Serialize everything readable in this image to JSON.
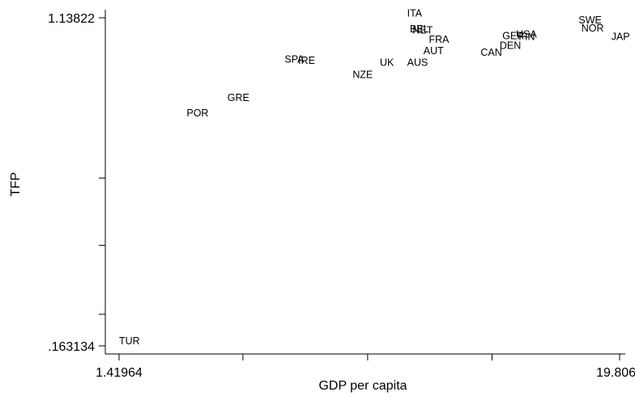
{
  "chart_data": {
    "type": "scatter",
    "title": "",
    "xlabel": "GDP per capita",
    "ylabel": "TFP",
    "xlim": [
      1.41964,
      19.8063
    ],
    "ylim": [
      0.163134,
      1.13822
    ],
    "grid": false,
    "legend": "none",
    "x_ticks": {
      "labels": [
        "1.41964",
        "19.8063"
      ],
      "unlabeled_positions": [
        5.97,
        10.55,
        15.12
      ]
    },
    "y_ticks": {
      "labels": [
        ".163134",
        "1.13822"
      ],
      "unlabeled_positions": [
        0.257,
        0.462,
        0.662
      ]
    },
    "points": [
      {
        "label": "ITA",
        "x": 12.0,
        "y": 1.137
      },
      {
        "label": "SWE",
        "x": 18.3,
        "y": 1.117
      },
      {
        "label": "NOR",
        "x": 18.4,
        "y": 1.092
      },
      {
        "label": "BEL",
        "x": 12.1,
        "y": 1.09
      },
      {
        "label": "NET",
        "x": 12.2,
        "y": 1.087
      },
      {
        "label": "USA",
        "x": 16.0,
        "y": 1.075
      },
      {
        "label": "GER",
        "x": 15.5,
        "y": 1.07
      },
      {
        "label": "FIN",
        "x": 16.1,
        "y": 1.067
      },
      {
        "label": "JAP",
        "x": 19.5,
        "y": 1.067
      },
      {
        "label": "FRA",
        "x": 12.8,
        "y": 1.059
      },
      {
        "label": "DEN",
        "x": 15.4,
        "y": 1.041
      },
      {
        "label": "AUT",
        "x": 12.6,
        "y": 1.025
      },
      {
        "label": "CAN",
        "x": 14.7,
        "y": 1.02
      },
      {
        "label": "SPA",
        "x": 7.5,
        "y": 1.0
      },
      {
        "label": "IRE",
        "x": 8.0,
        "y": 0.996
      },
      {
        "label": "UK",
        "x": 11.0,
        "y": 0.991
      },
      {
        "label": "AUS",
        "x": 12.0,
        "y": 0.99
      },
      {
        "label": "NZE",
        "x": 10.0,
        "y": 0.955
      },
      {
        "label": "GRE",
        "x": 5.4,
        "y": 0.886
      },
      {
        "label": "POR",
        "x": 3.9,
        "y": 0.84
      },
      {
        "label": "TUR",
        "x": 1.42,
        "y": 0.163
      }
    ]
  }
}
